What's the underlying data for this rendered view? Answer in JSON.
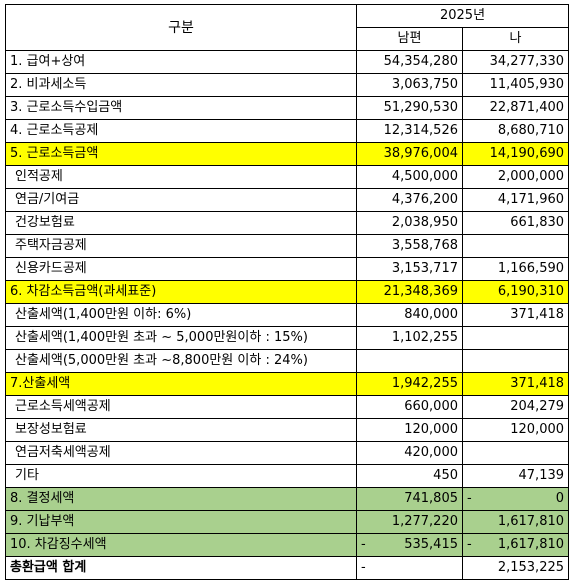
{
  "header": {
    "label": "구분",
    "year": "2025년",
    "col_husband": "남편",
    "col_me": "나"
  },
  "rows": [
    {
      "label": "1. 급여+상여",
      "a": "54,354,280",
      "b": "34,277,330"
    },
    {
      "label": "2. 비과세소득",
      "a": "3,063,750",
      "b": "11,405,930"
    },
    {
      "label": "3. 근로소득수입금액",
      "a": "51,290,530",
      "b": "22,871,400"
    },
    {
      "label": "4. 근로소득공제",
      "a": "12,314,526",
      "b": "8,680,710"
    },
    {
      "label": "5. 근로소득금액",
      "a": "38,976,004",
      "b": "14,190,690"
    },
    {
      "label": "인적공제",
      "a": "4,500,000",
      "b": "2,000,000"
    },
    {
      "label": "연금/기여금",
      "a": "4,376,200",
      "b": "4,171,960"
    },
    {
      "label": "건강보험료",
      "a": "2,038,950",
      "b": "661,830"
    },
    {
      "label": "주택자금공제",
      "a": "3,558,768",
      "b": ""
    },
    {
      "label": "신용카드공제",
      "a": "3,153,717",
      "b": "1,166,590"
    },
    {
      "label": "6. 차감소득금액(과세표준)",
      "a": "21,348,369",
      "b": "6,190,310"
    },
    {
      "label": "산출세액(1,400만원 이하: 6%)",
      "a": "840,000",
      "b": "371,418"
    },
    {
      "label": "산출세액(1,400만원 초과 ~ 5,000만원이하 : 15%)",
      "a": "1,102,255",
      "b": ""
    },
    {
      "label": "산출세액(5,000만원 초과 ~8,800만원 이하 : 24%)",
      "a": "",
      "b": ""
    },
    {
      "label": "7.산출세액",
      "a": "1,942,255",
      "b": "371,418"
    },
    {
      "label": "근로소득세액공제",
      "a": "660,000",
      "b": "204,279"
    },
    {
      "label": "보장성보험료",
      "a": "120,000",
      "b": "120,000"
    },
    {
      "label": "연금저축세액공제",
      "a": "420,000",
      "b": ""
    },
    {
      "label": "기타",
      "a": "450",
      "b": "47,139"
    },
    {
      "label": "8. 결정세액",
      "a": "741,805",
      "b": "0",
      "b_prefix": "-"
    },
    {
      "label": "9. 기납부액",
      "a": "1,277,220",
      "b": "1,617,810"
    },
    {
      "label": "10. 차감징수세액",
      "a": "535,415",
      "a_prefix": "-",
      "b": "1,617,810",
      "b_prefix": "-"
    },
    {
      "label": "총환급액 합계",
      "a": "",
      "a_prefix": "-",
      "b": "2,153,225"
    }
  ],
  "colors": {
    "highlight_yellow": "#ffff00",
    "highlight_green": "#a9d08e"
  }
}
